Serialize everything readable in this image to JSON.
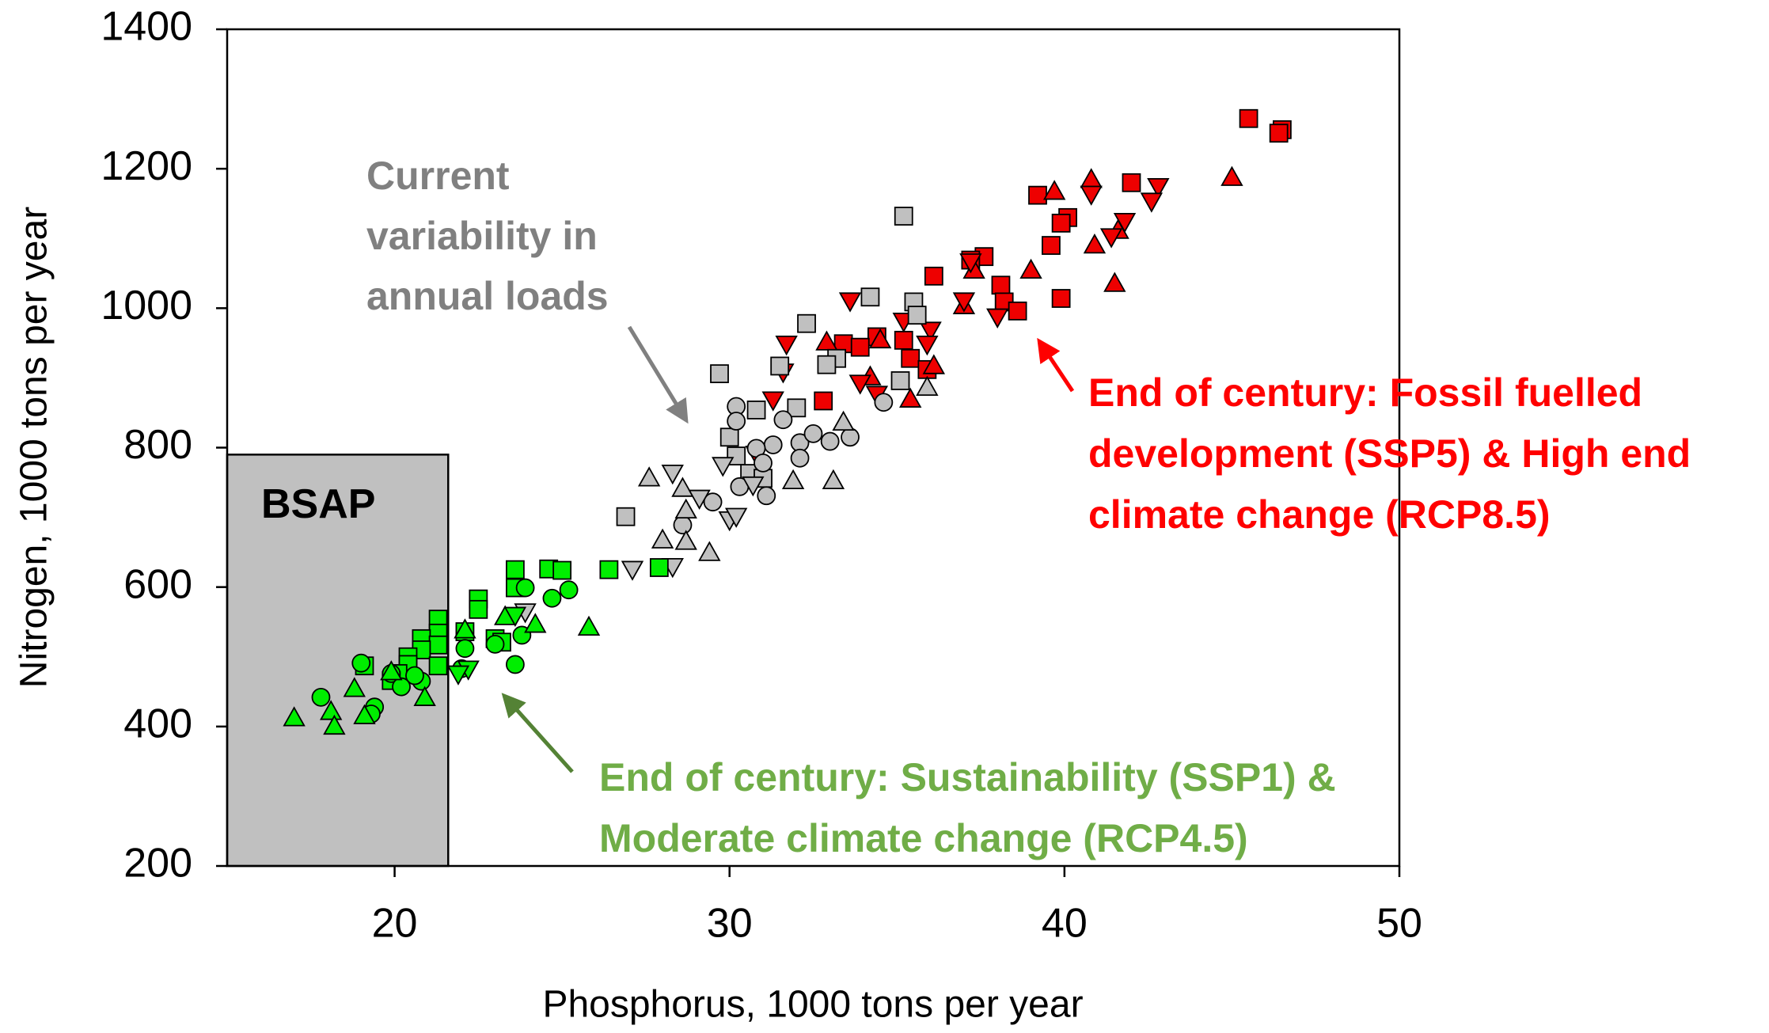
{
  "chart_data": {
    "type": "scatter",
    "x_label": "Phosphorus, 1000 tons per year",
    "y_label": "Nitrogen, 1000 tons per year",
    "xlim": [
      15,
      50
    ],
    "ylim": [
      200,
      1400
    ],
    "xticks": [
      20,
      30,
      40,
      50
    ],
    "yticks": [
      200,
      400,
      600,
      800,
      1000,
      1200,
      1400
    ],
    "grid": false,
    "region": {
      "label": "BSAP",
      "x": [
        15,
        21.6
      ],
      "y": [
        200,
        790
      ],
      "color": "#c0c0c0"
    },
    "annotations": [
      {
        "lines": [
          "Current",
          "variability in",
          "annual loads"
        ],
        "color": "#808080"
      },
      {
        "lines": [
          "End of century: Fossil fuelled",
          "development (SSP5) & High end",
          "climate change (RCP8.5)"
        ],
        "color": "#ff0000"
      },
      {
        "lines": [
          "End of century: Sustainability (SSP1) &",
          "Moderate climate change (RCP4.5)"
        ],
        "color": "#70ad47"
      }
    ],
    "series": [
      {
        "color": "#ee0000",
        "marker": "square",
        "x": [
          45.5,
          46.5,
          46.4,
          42.0,
          39.2,
          40.1,
          39.9,
          39.6,
          39.9,
          38.1,
          37.6,
          37.2,
          36.1,
          38.2,
          38.6,
          35.2,
          34.4,
          33.4,
          33.9,
          35.4,
          35.9,
          32.8
        ],
        "values": [
          1272,
          1256,
          1251,
          1180,
          1162,
          1130,
          1122,
          1090,
          1014,
          1033,
          1074,
          1069,
          1046,
          1009,
          996,
          954,
          959,
          949,
          944,
          928,
          912,
          867
        ]
      },
      {
        "color": "#ee0000",
        "marker": "triangle",
        "x": [
          45.0,
          39.7,
          40.8,
          40.9,
          41.6,
          41.5,
          39.0,
          37.3,
          37.0,
          36.1,
          35.4,
          34.2,
          32.9,
          34.5
        ],
        "values": [
          1187,
          1167,
          1184,
          1090,
          1111,
          1035,
          1054,
          1054,
          1003,
          917,
          869,
          901,
          951,
          954
        ]
      },
      {
        "color": "#ee0000",
        "marker": "triangle-down",
        "x": [
          42.8,
          42.6,
          41.8,
          41.4,
          40.8,
          38.0,
          37.0,
          37.2,
          36.0,
          35.2,
          33.6,
          31.7,
          31.3,
          30.8,
          33.9,
          34.4,
          35.9,
          31.6
        ],
        "values": [
          1175,
          1154,
          1125,
          1103,
          1164,
          988,
          1011,
          1067,
          969,
          982,
          1011,
          949,
          869,
          791,
          893,
          877,
          949,
          909
        ]
      },
      {
        "color": "#c0c0c0",
        "marker": "square",
        "x": [
          35.2,
          34.2,
          32.3,
          35.5,
          35.6,
          29.7,
          31.5,
          30.8,
          32.0,
          30.0,
          30.2,
          33.2,
          32.9,
          35.1,
          26.9,
          30.6,
          31.0
        ],
        "values": [
          1132,
          1016,
          978,
          1009,
          990,
          906,
          917,
          854,
          857,
          815,
          788,
          928,
          919,
          896,
          701,
          763,
          756
        ]
      },
      {
        "color": "#c0c0c0",
        "marker": "circle",
        "x": [
          30.2,
          31.6,
          30.2,
          32.1,
          31.3,
          32.5,
          33.6,
          33.0,
          30.8,
          31.0,
          32.1,
          30.3,
          31.1,
          29.5,
          28.6,
          34.6
        ],
        "values": [
          859,
          840,
          838,
          807,
          804,
          820,
          815,
          809,
          799,
          778,
          785,
          744,
          731,
          722,
          689,
          865
        ]
      },
      {
        "color": "#c0c0c0",
        "marker": "triangle",
        "x": [
          27.6,
          28.6,
          28.7,
          28.0,
          28.7,
          29.4,
          33.1,
          33.4,
          35.9,
          31.9
        ],
        "values": [
          756,
          741,
          710,
          667,
          665,
          649,
          752,
          836,
          886,
          752
        ]
      },
      {
        "color": "#c0c0c0",
        "marker": "triangle-down",
        "x": [
          28.3,
          29.8,
          30.7,
          30.0,
          27.1,
          28.3,
          30.2,
          29.1,
          23.9
        ],
        "values": [
          764,
          775,
          747,
          697,
          626,
          630,
          702,
          728,
          565
        ]
      },
      {
        "color": "#00ee00",
        "marker": "square",
        "x": [
          24.6,
          23.6,
          25.0,
          26.4,
          27.9,
          23.6,
          22.5,
          22.5,
          21.3,
          21.3,
          20.8,
          21.3,
          23.0,
          22.1,
          20.8,
          20.4,
          20.4,
          21.3,
          20.1,
          19.1,
          19.9,
          23.2
        ],
        "values": [
          626,
          625,
          624,
          625,
          628,
          599,
          583,
          568,
          554,
          534,
          526,
          517,
          526,
          536,
          510,
          500,
          489,
          487,
          476,
          487,
          466,
          521
        ]
      },
      {
        "color": "#00ee00",
        "marker": "circle",
        "x": [
          17.8,
          19.0,
          19.9,
          19.4,
          19.3,
          20.8,
          22.0,
          23.6,
          25.2,
          24.7,
          23.9,
          23.0,
          23.8,
          20.2,
          20.6,
          22.1
        ],
        "values": [
          442,
          491,
          476,
          428,
          418,
          465,
          483,
          489,
          596,
          584,
          599,
          518,
          531,
          457,
          473,
          512
        ]
      },
      {
        "color": "#00ee00",
        "marker": "triangle",
        "x": [
          17.0,
          18.1,
          18.2,
          18.8,
          19.1,
          20.9,
          24.2,
          25.8,
          23.3,
          22.1,
          19.9
        ],
        "values": [
          412,
          421,
          400,
          454,
          415,
          441,
          546,
          542,
          557,
          538,
          478
        ]
      },
      {
        "color": "#00ee00",
        "marker": "triangle-down",
        "x": [
          22.2,
          23.6,
          21.9
        ],
        "values": [
          483,
          560,
          476
        ]
      }
    ]
  }
}
